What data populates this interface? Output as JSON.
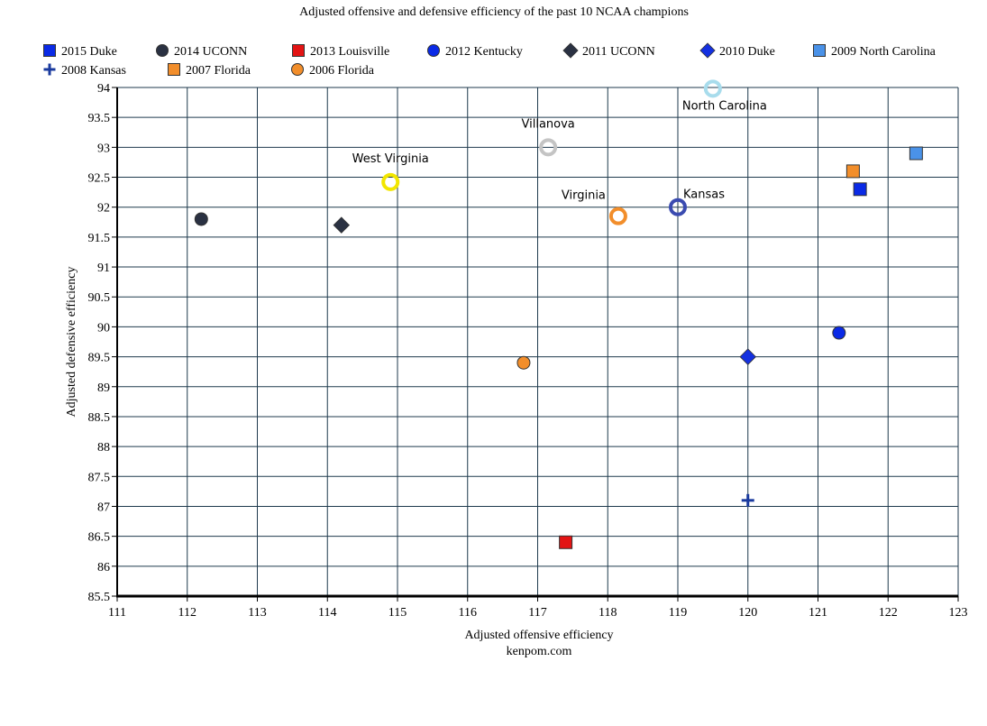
{
  "chart_data": {
    "type": "scatter",
    "title": "Adjusted offensive and defensive efficiency of the past 10 NCAA champions",
    "xlabel": "Adjusted offensive efficiency",
    "xlabel_sub": "kenpom.com",
    "ylabel": "Adjusted defensive efficiency",
    "xlim": [
      111,
      123
    ],
    "ylim": [
      85.5,
      94
    ],
    "x_ticks": [
      111,
      112,
      113,
      114,
      115,
      116,
      117,
      118,
      119,
      120,
      121,
      122,
      123
    ],
    "y_ticks": [
      85.5,
      86,
      86.5,
      87,
      87.5,
      88,
      88.5,
      89,
      89.5,
      90,
      90.5,
      91,
      91.5,
      92,
      92.5,
      93,
      93.5,
      94
    ],
    "grid": true,
    "legend_position": "top",
    "series": [
      {
        "name": "2015 Duke",
        "marker": "square",
        "color": "#0a2ae6",
        "points": [
          [
            121.6,
            92.3
          ]
        ]
      },
      {
        "name": "2014 UCONN",
        "marker": "circle",
        "color": "#2a3142",
        "points": [
          [
            112.2,
            91.8
          ]
        ]
      },
      {
        "name": "2013 Louisville",
        "marker": "square",
        "color": "#e31414",
        "points": [
          [
            117.4,
            86.4
          ]
        ]
      },
      {
        "name": "2012 Kentucky",
        "marker": "circle",
        "color": "#0a2ae6",
        "points": [
          [
            121.3,
            89.9
          ]
        ]
      },
      {
        "name": "2011 UCONN",
        "marker": "diamond",
        "color": "#2a3142",
        "points": [
          [
            114.2,
            91.7
          ]
        ]
      },
      {
        "name": "2010 Duke",
        "marker": "diamond",
        "color": "#1430e0",
        "points": [
          [
            120.0,
            89.5
          ]
        ]
      },
      {
        "name": "2009 North Carolina",
        "marker": "square",
        "color": "#4a92e8",
        "points": [
          [
            122.4,
            92.9
          ]
        ]
      },
      {
        "name": "2008 Kansas",
        "marker": "plus",
        "color": "#1a3a9e",
        "points": [
          [
            120.0,
            87.1
          ]
        ]
      },
      {
        "name": "2007 Florida",
        "marker": "square",
        "color": "#f28e2b",
        "points": [
          [
            121.5,
            92.6
          ]
        ]
      },
      {
        "name": "2006 Florida",
        "marker": "circle",
        "color": "#f28e2b",
        "points": [
          [
            116.8,
            89.4
          ]
        ]
      }
    ],
    "annotations": [
      {
        "label": "West Virginia",
        "x": 114.9,
        "y": 92.42,
        "color": "#f2e600",
        "label_pos": "above"
      },
      {
        "label": "Villanova",
        "x": 117.15,
        "y": 93.0,
        "color": "#c4c4c4",
        "label_pos": "above"
      },
      {
        "label": "North Carolina",
        "x": 119.5,
        "y": 93.98,
        "color": "#a8dcec",
        "label_pos": "below"
      },
      {
        "label": "Virginia",
        "x": 118.15,
        "y": 91.85,
        "color": "#f28e2b",
        "label_pos": "above-left"
      },
      {
        "label": "Kansas",
        "x": 119.0,
        "y": 92.0,
        "color": "#3a4bb0",
        "label_pos": "above-right"
      }
    ]
  }
}
